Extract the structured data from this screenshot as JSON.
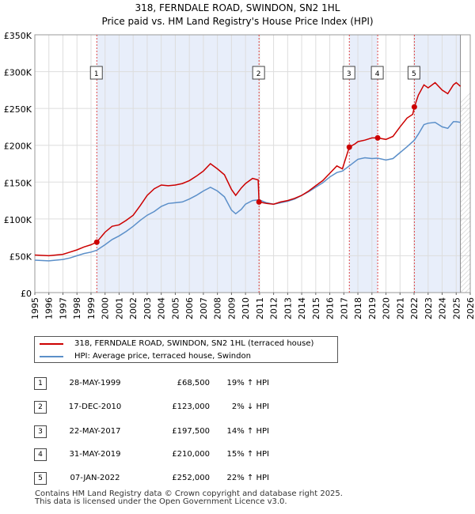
{
  "chart_data": {
    "type": "line",
    "title": "318, FERNDALE ROAD, SWINDON, SN2 1HL",
    "subtitle": "Price paid vs. HM Land Registry's House Price Index (HPI)",
    "xlim": [
      1995,
      2026
    ],
    "ylim": [
      0,
      350000
    ],
    "x_ticks": [
      "1995",
      "1996",
      "1997",
      "1998",
      "1999",
      "2000",
      "2001",
      "2002",
      "2003",
      "2004",
      "2005",
      "2006",
      "2007",
      "2008",
      "2009",
      "2010",
      "2011",
      "2012",
      "2013",
      "2014",
      "2015",
      "2016",
      "2017",
      "2018",
      "2019",
      "2020",
      "2021",
      "2022",
      "2023",
      "2024",
      "2025",
      "2026"
    ],
    "y_ticks": [
      {
        "value": 0,
        "label": "£0"
      },
      {
        "value": 50000,
        "label": "£50K"
      },
      {
        "value": 100000,
        "label": "£100K"
      },
      {
        "value": 150000,
        "label": "£150K"
      },
      {
        "value": 200000,
        "label": "£200K"
      },
      {
        "value": 250000,
        "label": "£250K"
      },
      {
        "value": 300000,
        "label": "£300K"
      },
      {
        "value": 350000,
        "label": "£350K"
      }
    ],
    "grid": true,
    "series": [
      {
        "name": "318, FERNDALE ROAD, SWINDON, SN2 1HL (terraced house)",
        "color": "#cc0000",
        "points": [
          [
            1995.0,
            51000
          ],
          [
            1996.0,
            50000
          ],
          [
            1997.0,
            52000
          ],
          [
            1997.5,
            55000
          ],
          [
            1998.0,
            58000
          ],
          [
            1998.5,
            62000
          ],
          [
            1999.0,
            65000
          ],
          [
            1999.41,
            68500
          ],
          [
            2000.0,
            82000
          ],
          [
            2000.5,
            90000
          ],
          [
            2001.0,
            92000
          ],
          [
            2001.5,
            98000
          ],
          [
            2002.0,
            105000
          ],
          [
            2002.5,
            118000
          ],
          [
            2003.0,
            132000
          ],
          [
            2003.5,
            141000
          ],
          [
            2004.0,
            146000
          ],
          [
            2004.5,
            145000
          ],
          [
            2005.0,
            146000
          ],
          [
            2005.5,
            148000
          ],
          [
            2006.0,
            152000
          ],
          [
            2006.5,
            158000
          ],
          [
            2007.0,
            165000
          ],
          [
            2007.5,
            175000
          ],
          [
            2008.0,
            168000
          ],
          [
            2008.5,
            160000
          ],
          [
            2009.0,
            140000
          ],
          [
            2009.3,
            132000
          ],
          [
            2009.7,
            142000
          ],
          [
            2010.0,
            148000
          ],
          [
            2010.5,
            155000
          ],
          [
            2010.9,
            153000
          ],
          [
            2010.96,
            123000
          ],
          [
            2011.5,
            121000
          ],
          [
            2012.0,
            120000
          ],
          [
            2012.5,
            123000
          ],
          [
            2013.0,
            125000
          ],
          [
            2013.5,
            128000
          ],
          [
            2014.0,
            132000
          ],
          [
            2014.5,
            138000
          ],
          [
            2015.0,
            145000
          ],
          [
            2015.5,
            152000
          ],
          [
            2016.0,
            162000
          ],
          [
            2016.5,
            172000
          ],
          [
            2016.9,
            168000
          ],
          [
            2017.39,
            197500
          ],
          [
            2017.8,
            202000
          ],
          [
            2018.0,
            205000
          ],
          [
            2018.5,
            207000
          ],
          [
            2019.0,
            210000
          ],
          [
            2019.41,
            210000
          ],
          [
            2020.0,
            208000
          ],
          [
            2020.5,
            212000
          ],
          [
            2021.0,
            225000
          ],
          [
            2021.5,
            237000
          ],
          [
            2021.9,
            242000
          ],
          [
            2022.02,
            252000
          ],
          [
            2022.3,
            268000
          ],
          [
            2022.7,
            282000
          ],
          [
            2023.0,
            278000
          ],
          [
            2023.5,
            285000
          ],
          [
            2024.0,
            275000
          ],
          [
            2024.4,
            270000
          ],
          [
            2024.8,
            282000
          ],
          [
            2025.0,
            285000
          ],
          [
            2025.3,
            280000
          ]
        ]
      },
      {
        "name": "HPI: Average price, terraced house, Swindon",
        "color": "#5b8fc9",
        "points": [
          [
            1995.0,
            44000
          ],
          [
            1996.0,
            43000
          ],
          [
            1997.0,
            45000
          ],
          [
            1997.5,
            47000
          ],
          [
            1998.0,
            50000
          ],
          [
            1998.5,
            53000
          ],
          [
            1999.0,
            55000
          ],
          [
            1999.41,
            57500
          ],
          [
            2000.0,
            65000
          ],
          [
            2000.5,
            72000
          ],
          [
            2001.0,
            77000
          ],
          [
            2001.5,
            83000
          ],
          [
            2002.0,
            90000
          ],
          [
            2002.5,
            98000
          ],
          [
            2003.0,
            105000
          ],
          [
            2003.5,
            110000
          ],
          [
            2004.0,
            117000
          ],
          [
            2004.5,
            121000
          ],
          [
            2005.0,
            122000
          ],
          [
            2005.5,
            123000
          ],
          [
            2006.0,
            127000
          ],
          [
            2006.5,
            132000
          ],
          [
            2007.0,
            138000
          ],
          [
            2007.5,
            143000
          ],
          [
            2008.0,
            138000
          ],
          [
            2008.5,
            130000
          ],
          [
            2009.0,
            112000
          ],
          [
            2009.3,
            107000
          ],
          [
            2009.7,
            113000
          ],
          [
            2010.0,
            120000
          ],
          [
            2010.5,
            125000
          ],
          [
            2010.96,
            126000
          ],
          [
            2011.5,
            122000
          ],
          [
            2012.0,
            120000
          ],
          [
            2012.5,
            122000
          ],
          [
            2013.0,
            124000
          ],
          [
            2013.5,
            127000
          ],
          [
            2014.0,
            132000
          ],
          [
            2014.5,
            137000
          ],
          [
            2015.0,
            143000
          ],
          [
            2015.5,
            149000
          ],
          [
            2016.0,
            157000
          ],
          [
            2016.5,
            163000
          ],
          [
            2016.9,
            165000
          ],
          [
            2017.39,
            172000
          ],
          [
            2017.8,
            178000
          ],
          [
            2018.0,
            181000
          ],
          [
            2018.5,
            183000
          ],
          [
            2019.0,
            182000
          ],
          [
            2019.41,
            182500
          ],
          [
            2020.0,
            180000
          ],
          [
            2020.5,
            182000
          ],
          [
            2021.0,
            190000
          ],
          [
            2021.5,
            198000
          ],
          [
            2022.02,
            207000
          ],
          [
            2022.3,
            215000
          ],
          [
            2022.7,
            228000
          ],
          [
            2023.0,
            230000
          ],
          [
            2023.5,
            231000
          ],
          [
            2024.0,
            225000
          ],
          [
            2024.4,
            223000
          ],
          [
            2024.8,
            232000
          ],
          [
            2025.0,
            232000
          ],
          [
            2025.3,
            231000
          ]
        ]
      }
    ],
    "sales": [
      {
        "num": "1",
        "x": 1999.41,
        "price": 68500
      },
      {
        "num": "2",
        "x": 2010.96,
        "price": 123000
      },
      {
        "num": "3",
        "x": 2017.39,
        "price": 197500
      },
      {
        "num": "4",
        "x": 2019.41,
        "price": 210000
      },
      {
        "num": "5",
        "x": 2022.02,
        "price": 252000
      }
    ],
    "shaded_ranges": [
      [
        1999.41,
        2010.96
      ],
      [
        2017.39,
        2019.41
      ],
      [
        2022.02,
        2025.3
      ]
    ],
    "forecast_start": 2025.3
  },
  "legend": {
    "items": [
      {
        "label": "318, FERNDALE ROAD, SWINDON, SN2 1HL (terraced house)",
        "color": "#cc0000"
      },
      {
        "label": "HPI: Average price, terraced house, Swindon",
        "color": "#5b8fc9"
      }
    ]
  },
  "sales_table": [
    {
      "num": "1",
      "date": "28-MAY-1999",
      "price": "£68,500",
      "pct": "19% ↑ HPI"
    },
    {
      "num": "2",
      "date": "17-DEC-2010",
      "price": "£123,000",
      "pct": "2% ↓ HPI"
    },
    {
      "num": "3",
      "date": "22-MAY-2017",
      "price": "£197,500",
      "pct": "14% ↑ HPI"
    },
    {
      "num": "4",
      "date": "31-MAY-2019",
      "price": "£210,000",
      "pct": "15% ↑ HPI"
    },
    {
      "num": "5",
      "date": "07-JAN-2022",
      "price": "£252,000",
      "pct": "22% ↑ HPI"
    }
  ],
  "footer": {
    "line1": "Contains HM Land Registry data © Crown copyright and database right 2025.",
    "line2": "This data is licensed under the Open Government Licence v3.0."
  }
}
